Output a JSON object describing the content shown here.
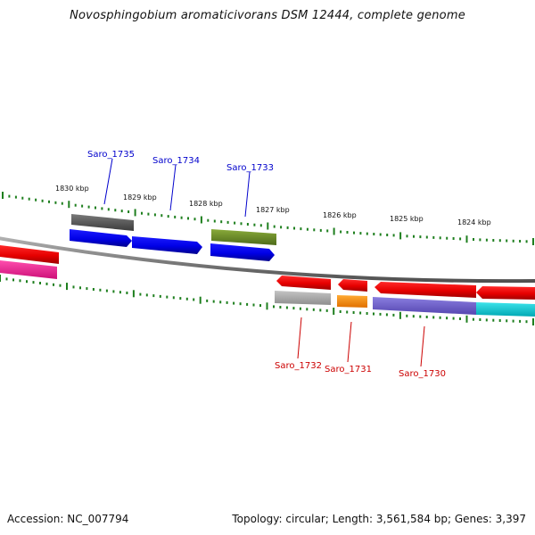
{
  "title": "Novosphingobium aromaticivorans DSM 12444, complete genome",
  "footer": {
    "accession": "Accession: NC_007794",
    "summary": "Topology: circular; Length: 3,561,584 bp; Genes: 3,397"
  },
  "colors": {
    "backbone": "#8c8c8c",
    "tick": "#1e7f1e",
    "forward_label": "#0000cc",
    "reverse_label": "#cc0000"
  },
  "position_labels": [
    "1830 kbp",
    "1829 kbp",
    "1828 kbp",
    "1827 kbp",
    "1826 kbp",
    "1825 kbp",
    "1824 kbp"
  ],
  "gene_labels": {
    "forward": [
      "Saro_1735",
      "Saro_1734",
      "Saro_1733"
    ],
    "reverse": [
      "Saro_1732",
      "Saro_1731",
      "Saro_1730"
    ]
  },
  "feature_colors": {
    "forward_cds": [
      "#0000ee",
      "#0000ee",
      "#0000ee"
    ],
    "forward_functional": [
      "#5a5a5a",
      "#6b8e23"
    ],
    "reverse_cds": [
      "#ee0000",
      "#ee0000",
      "#ee0000",
      "#ee0000",
      "#ee0000"
    ],
    "reverse_functional": [
      "#aaaaaa",
      "#ff8c00",
      "#6a5acd",
      "#00c8d2",
      "#ee1c8e"
    ]
  }
}
